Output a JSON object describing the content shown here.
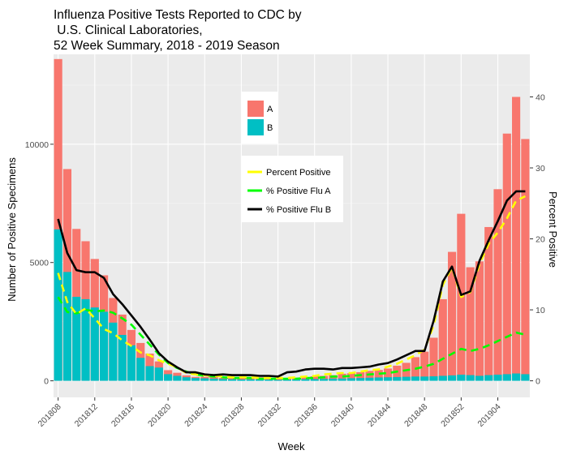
{
  "chart_data": {
    "type": "bar",
    "title_lines": [
      "Influenza Positive Tests Reported to CDC by",
      " U.S. Clinical Laboratories,",
      "52 Week Summary, 2018 - 2019 Season"
    ],
    "xlabel": "Week",
    "ylabel_left": "Number of Positive Specimens",
    "ylabel_right": "Percent Positive",
    "y_left_lim": [
      -700,
      13800
    ],
    "y_left_ticks": [
      0,
      5000,
      10000
    ],
    "y_left_tick_labels": [
      "0",
      "5000",
      "10000"
    ],
    "y_right_ticks": [
      0,
      10,
      20,
      30,
      40
    ],
    "y_right_tick_labels": [
      "0",
      "10",
      "20",
      "30",
      "40"
    ],
    "weeks": [
      "201808",
      "201809",
      "201810",
      "201811",
      "201812",
      "201813",
      "201814",
      "201815",
      "201816",
      "201817",
      "201818",
      "201819",
      "201820",
      "201821",
      "201822",
      "201823",
      "201824",
      "201825",
      "201826",
      "201827",
      "201828",
      "201829",
      "201830",
      "201831",
      "201832",
      "201833",
      "201834",
      "201835",
      "201836",
      "201837",
      "201838",
      "201839",
      "201840",
      "201841",
      "201842",
      "201843",
      "201844",
      "201845",
      "201846",
      "201847",
      "201848",
      "201849",
      "201850",
      "201851",
      "201852",
      "201901",
      "201902",
      "201903",
      "201904",
      "201905",
      "201906",
      "201907"
    ],
    "x_tick_labels": [
      "201808",
      "201812",
      "201816",
      "201820",
      "201824",
      "201828",
      "201832",
      "201836",
      "201840",
      "201844",
      "201848",
      "201852",
      "201904"
    ],
    "x_tick_every": 4,
    "series": [
      {
        "name": "A",
        "kind": "bar",
        "color": "#F8766D",
        "values": [
          13600,
          8950,
          6420,
          5900,
          5150,
          4460,
          3500,
          2800,
          2150,
          1600,
          1150,
          820,
          450,
          340,
          230,
          165,
          170,
          155,
          120,
          115,
          110,
          115,
          150,
          125,
          115,
          115,
          130,
          150,
          190,
          210,
          240,
          300,
          320,
          365,
          420,
          460,
          520,
          640,
          760,
          1000,
          1230,
          1820,
          3450,
          5450,
          7060,
          4800,
          5050,
          6500,
          8100,
          10450,
          12000,
          10220
        ]
      },
      {
        "name": "B",
        "kind": "bar",
        "color": "#00BFC4",
        "values": [
          6400,
          4600,
          3550,
          3450,
          3100,
          2920,
          2460,
          1940,
          1500,
          970,
          620,
          560,
          280,
          210,
          150,
          115,
          105,
          90,
          75,
          65,
          55,
          58,
          62,
          52,
          42,
          52,
          60,
          68,
          72,
          80,
          92,
          96,
          110,
          118,
          130,
          142,
          150,
          160,
          170,
          180,
          180,
          190,
          210,
          230,
          260,
          240,
          210,
          240,
          260,
          280,
          310,
          280
        ]
      },
      {
        "name": "Percent Positive",
        "kind": "line",
        "color": "#FFFF00",
        "dashed": true,
        "values": [
          15.2,
          11.1,
          9.4,
          10.2,
          8.8,
          7.3,
          6.7,
          5.7,
          4.9,
          4.0,
          3.6,
          2.9,
          2.4,
          1.9,
          1.1,
          0.9,
          0.8,
          0.7,
          0.6,
          0.5,
          0.5,
          0.5,
          0.4,
          0.4,
          0.4,
          0.4,
          0.5,
          0.6,
          0.7,
          0.9,
          1.0,
          1.1,
          1.1,
          1.3,
          1.5,
          1.6,
          2.0,
          2.4,
          3.0,
          3.6,
          4.4,
          7.8,
          13.5,
          16.0,
          11.8,
          12.5,
          16.4,
          19.3,
          20.9,
          22.9,
          25.4,
          26.0
        ]
      },
      {
        "name": "% Positive Flu A",
        "kind": "line",
        "color": "#00FF00",
        "dashed": true,
        "values": [
          11.8,
          9.7,
          9.5,
          10.0,
          9.8,
          9.9,
          9.6,
          8.8,
          7.9,
          6.5,
          5.1,
          3.7,
          2.5,
          1.8,
          1.3,
          0.9,
          0.7,
          0.6,
          0.5,
          0.4,
          0.4,
          0.4,
          0.3,
          0.3,
          0.3,
          0.3,
          0.3,
          0.4,
          0.4,
          0.5,
          0.6,
          0.6,
          0.7,
          0.8,
          0.9,
          1.0,
          1.1,
          1.3,
          1.5,
          1.7,
          2.0,
          2.4,
          3.1,
          3.8,
          4.5,
          4.2,
          4.5,
          5.0,
          5.6,
          6.2,
          6.8,
          6.5
        ]
      },
      {
        "name": "% Positive Flu B",
        "kind": "line",
        "color": "#000000",
        "dashed": false,
        "values": [
          22.8,
          18.0,
          15.6,
          15.3,
          15.3,
          14.5,
          12.2,
          10.8,
          9.2,
          7.6,
          5.8,
          3.9,
          2.7,
          1.9,
          1.2,
          1.2,
          0.9,
          0.8,
          0.9,
          0.8,
          0.8,
          0.8,
          0.7,
          0.7,
          0.6,
          1.2,
          1.3,
          1.6,
          1.7,
          1.7,
          1.6,
          1.8,
          1.8,
          1.9,
          2.0,
          2.3,
          2.5,
          3.0,
          3.6,
          4.2,
          4.2,
          8.5,
          14.0,
          16.1,
          12.1,
          12.6,
          16.9,
          19.8,
          22.5,
          25.4,
          26.7,
          26.7
        ]
      }
    ],
    "legend_fill": {
      "title": "",
      "items": [
        "A",
        "B"
      ],
      "position": "top-center"
    },
    "legend_lines": {
      "title": "",
      "items": [
        "Percent Positive",
        "% Positive Flu A",
        "% Positive Flu B"
      ],
      "position": "center"
    },
    "grid": true,
    "panel_background": "#EBEBEB"
  }
}
